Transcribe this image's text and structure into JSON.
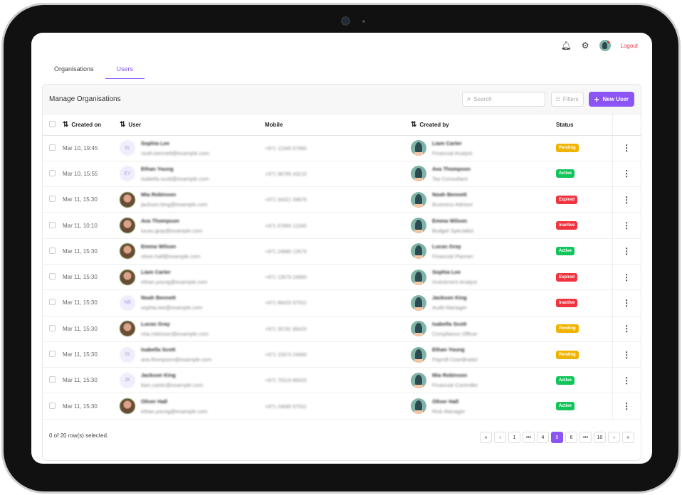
{
  "header": {
    "logout": "Logout",
    "notification_dot_color": "#ee2d3a"
  },
  "tabs": [
    {
      "label": "Organisations",
      "active": false
    },
    {
      "label": "Users",
      "active": true
    }
  ],
  "card": {
    "title": "Manage Organisations",
    "search_placeholder": "Search",
    "filters_label": "Filters",
    "new_user_label": "New User"
  },
  "columns": {
    "created_on": "Created on",
    "user": "User",
    "mobile": "Mobile",
    "created_by": "Created by",
    "status": "Status"
  },
  "rows": [
    {
      "created": "Mar 10, 19:45",
      "name": "Sophia Lee",
      "email": "noah.bennett@example.com",
      "initials": "SL",
      "mobile": "+971 12345 67890",
      "by_name": "Liam Carter",
      "by_role": "Financial Analyst",
      "status": "Pending"
    },
    {
      "created": "Mar 10, 15:55",
      "name": "Ethan Young",
      "email": "isabella.scott@example.com",
      "initials": "EY",
      "mobile": "+971 98765 43210",
      "by_name": "Ava Thompson",
      "by_role": "Tax Consultant",
      "status": "Active"
    },
    {
      "created": "Mar 11, 15:30",
      "name": "Mia Robinson",
      "email": "jackson.king@example.com",
      "initials": "",
      "mobile": "+971 54321 09876",
      "by_name": "Noah Bennett",
      "by_role": "Business Advisor",
      "status": "Expired"
    },
    {
      "created": "Mar 11, 10:10",
      "name": "Ava Thompson",
      "email": "lucas.gray@example.com",
      "initials": "",
      "mobile": "+971 67890 12345",
      "by_name": "Emma Wilson",
      "by_role": "Budget Specialist",
      "status": "Inactive"
    },
    {
      "created": "Mar 11, 15:30",
      "name": "Emma Wilson",
      "email": "oliver.hall@example.com",
      "initials": "",
      "mobile": "+971 24680 13579",
      "by_name": "Lucas Gray",
      "by_role": "Financial Planner",
      "status": "Active"
    },
    {
      "created": "Mar 11, 15:30",
      "name": "Liam Carter",
      "email": "ethan.young@example.com",
      "initials": "",
      "mobile": "+971 13579 24680",
      "by_name": "Sophia Lee",
      "by_role": "Investment Analyst",
      "status": "Expired"
    },
    {
      "created": "Mar 11, 15:30",
      "name": "Noah Bennett",
      "email": "sophia.lee@example.com",
      "initials": "NB",
      "mobile": "+971 86420 97531",
      "by_name": "Jackson King",
      "by_role": "Audit Manager",
      "status": "Inactive"
    },
    {
      "created": "Mar 11, 15:30",
      "name": "Lucas Gray",
      "email": "mia.robinson@example.com",
      "initials": "",
      "mobile": "+971 35791 86420",
      "by_name": "Isabella Scott",
      "by_role": "Compliance Officer",
      "status": "Pending"
    },
    {
      "created": "Mar 11, 15:30",
      "name": "Isabella Scott",
      "email": "ava.thompson@example.com",
      "initials": "IS",
      "mobile": "+971 15973 24680",
      "by_name": "Ethan Young",
      "by_role": "Payroll Coordinator",
      "status": "Pending"
    },
    {
      "created": "Mar 11, 15:30",
      "name": "Jackson King",
      "email": "liam.carter@example.com",
      "initials": "JK",
      "mobile": "+971 75319 86420",
      "by_name": "Mia Robinson",
      "by_role": "Financial Controller",
      "status": "Active"
    },
    {
      "created": "Mar 11, 15:30",
      "name": "Oliver Hall",
      "email": "ethan.young@example.com",
      "initials": "",
      "mobile": "+971 24680 97531",
      "by_name": "Oliver Hall",
      "by_role": "Risk Manager",
      "status": "Active"
    }
  ],
  "status_colors": {
    "Pending": "#f0b400",
    "Active": "#12c45a",
    "Expired": "#f0343f",
    "Inactive": "#f0343f"
  },
  "footer": {
    "selection": "0 of 20 row(s) selected."
  },
  "pagination": {
    "items": [
      "«",
      "‹",
      "1",
      "•••",
      "4",
      "5",
      "6",
      "•••",
      "10",
      "›",
      "»"
    ],
    "current": "5"
  }
}
